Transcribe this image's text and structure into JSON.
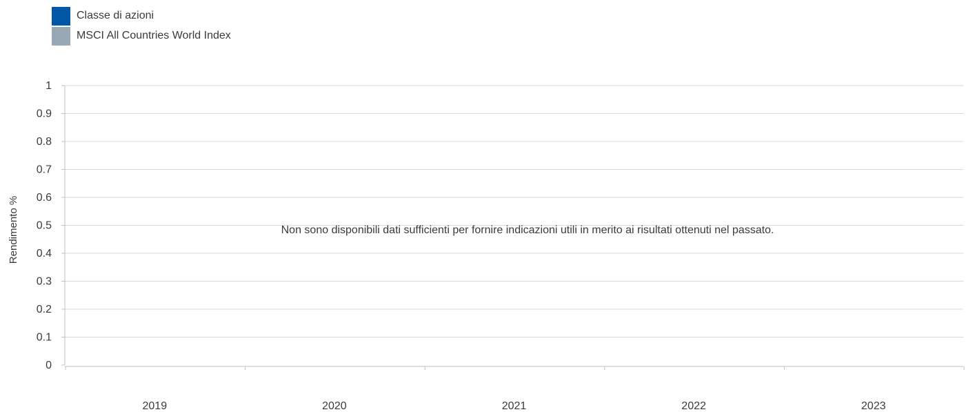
{
  "chart_data": {
    "type": "bar",
    "categories": [
      "2019",
      "2020",
      "2021",
      "2022",
      "2023"
    ],
    "series": [
      {
        "name": "Classe di azioni",
        "color": "#0057a8",
        "values": [
          null,
          null,
          null,
          null,
          null
        ]
      },
      {
        "name": "MSCI All Countries World Index",
        "color": "#98a8b5",
        "values": [
          null,
          null,
          null,
          null,
          null
        ]
      }
    ],
    "ylabel": "Rendimento %",
    "xlabel": "",
    "ylim": [
      0,
      1
    ],
    "yticks": [
      "0",
      "0.1",
      "0.2",
      "0.3",
      "0.4",
      "0.5",
      "0.6",
      "0.7",
      "0.8",
      "0.9",
      "1"
    ],
    "grid": true,
    "legend_position": "top-left",
    "annotation": "Non sono disponibili dati sufficienti per fornire indicazioni utili in merito ai risultati ottenuti nel passato."
  },
  "colors": {
    "grid": "#d9d9d9",
    "axis": "#bfbfbf",
    "text": "#3a3a3a"
  }
}
